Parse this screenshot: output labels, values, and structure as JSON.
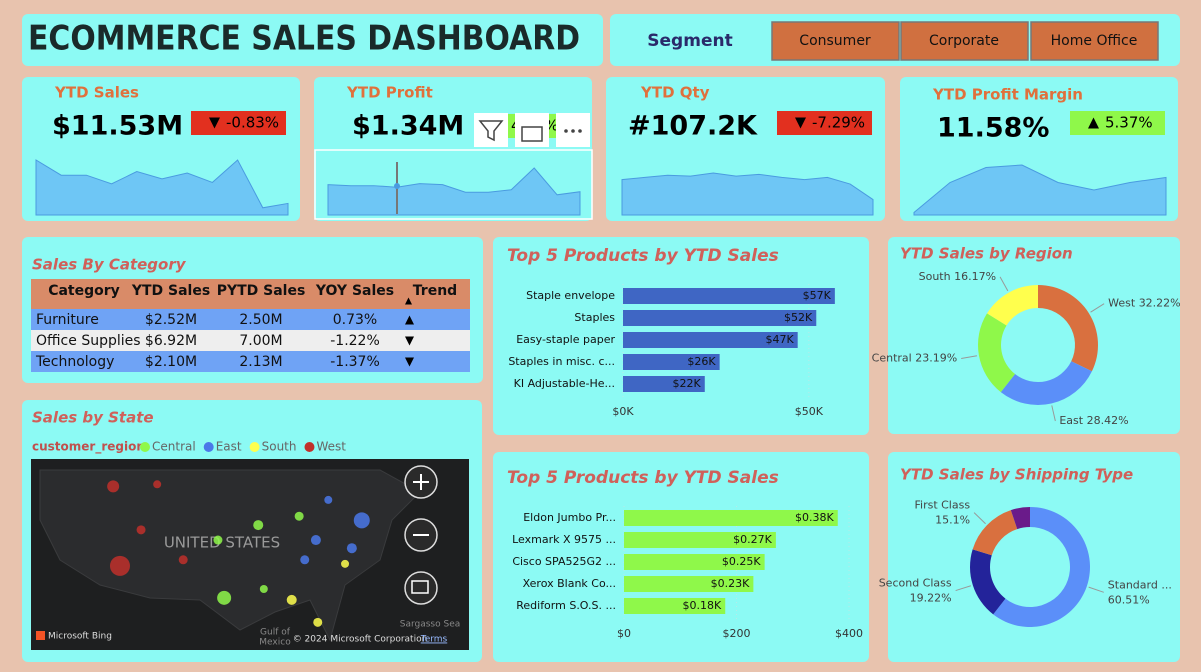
{
  "header": {
    "title": "ECOMMERCE SALES DASHBOARD"
  },
  "slicer": {
    "label": "Segment",
    "options": [
      "Consumer",
      "Corporate",
      "Home Office"
    ]
  },
  "kpis": [
    {
      "title": "YTD Sales",
      "value": "$11.53M",
      "change": "-0.83%",
      "direction": "down",
      "badge_color": "#e2301f"
    },
    {
      "title": "YTD Profit",
      "value": "$1.34M",
      "change": "4.50%",
      "direction": "up",
      "badge_color": "#8ff84a"
    },
    {
      "title": "YTD Qty",
      "value": "#107.2K",
      "change": "-7.29%",
      "direction": "down",
      "badge_color": "#e2301f"
    },
    {
      "title": "YTD Profit Margin",
      "value": "11.58%",
      "change": "5.37%",
      "direction": "up",
      "badge_color": "#8ff84a"
    }
  ],
  "table": {
    "title": "Sales By Category",
    "columns": [
      "Category",
      "YTD Sales",
      "PYTD Sales",
      "YOY Sales",
      "Trend"
    ],
    "rows": [
      [
        "Furniture",
        "$2.52M",
        "2.50M",
        "0.73%"
      ],
      [
        "Office Supplies",
        "$6.92M",
        "7.00M",
        "-1.22%"
      ],
      [
        "Technology",
        "$2.10M",
        "2.13M",
        "-1.37%"
      ]
    ],
    "trends": [
      "up",
      "down",
      "down"
    ]
  },
  "chart_data": [
    {
      "type": "area",
      "color": "#6ec6f5",
      "values": [
        0.76,
        0.55,
        0.55,
        0.43,
        0.6,
        0.5,
        0.58,
        0.45,
        0.76,
        0.1,
        0.16
      ]
    },
    {
      "type": "area",
      "color": "#6ec6f5",
      "values": [
        0.6,
        0.58,
        0.58,
        0.55,
        0.62,
        0.6,
        0.45,
        0.45,
        0.5,
        0.93,
        0.4,
        0.46
      ]
    },
    {
      "type": "area",
      "color": "#6ec6f5",
      "values": [
        0.8,
        0.85,
        0.9,
        0.88,
        0.95,
        0.88,
        0.92,
        0.85,
        0.8,
        0.85,
        0.7,
        0.35
      ]
    },
    {
      "type": "area",
      "color": "#6ec6f5",
      "values": [
        0.05,
        0.65,
        0.95,
        1,
        0.65,
        0.5,
        0.65,
        0.75
      ]
    },
    {
      "type": "bar",
      "orientation": "horizontal",
      "title": "Top 5 Products by YTD Sales",
      "categories": [
        "Staple envelope",
        "Staples",
        "Easy-staple paper",
        "Staples in misc. c...",
        "KI Adjustable-He..."
      ],
      "values": [
        57000,
        52000,
        47000,
        26000,
        22000
      ],
      "value_labels": [
        "$57K",
        "$52K",
        "$47K",
        "$26K",
        "$22K"
      ],
      "color": "#3f66c4",
      "xlim": [
        0,
        60000
      ],
      "xticks": [
        {
          "value": 0,
          "label": "$0K"
        },
        {
          "value": 50000,
          "label": "$50K"
        }
      ]
    },
    {
      "type": "bar",
      "orientation": "horizontal",
      "title": "Top 5 Products by YTD Sales",
      "categories": [
        "Eldon Jumbo Pr...",
        "Lexmark X 9575 ...",
        "Cisco SPA525G2 ...",
        "Xerox Blank Co...",
        "Rediform S.O.S. ..."
      ],
      "values": [
        380,
        270,
        250,
        230,
        180
      ],
      "value_labels": [
        "$0.38K",
        "$0.27K",
        "$0.25K",
        "$0.23K",
        "$0.18K"
      ],
      "color": "#8ff84a",
      "xlim": [
        0,
        400
      ],
      "xticks": [
        {
          "value": 0,
          "label": "$0"
        },
        {
          "value": 200,
          "label": "$200"
        },
        {
          "value": 400,
          "label": "$400"
        }
      ]
    },
    {
      "type": "donut",
      "title": "YTD Sales by Region",
      "categories": [
        "West",
        "East",
        "Central",
        "South"
      ],
      "values": [
        32.22,
        28.42,
        23.19,
        16.17
      ],
      "value_labels": [
        "32.22%",
        "28.42%",
        "23.19%",
        "16.17%"
      ],
      "colors": [
        "#d9703f",
        "#5b8ff9",
        "#8ff84a",
        "#ffff4d"
      ]
    },
    {
      "type": "donut",
      "title": "YTD Sales by Shipping Type",
      "categories": [
        "Standard ...",
        "Second Class",
        "First Class",
        null
      ],
      "values": [
        60.51,
        19.22,
        15.1,
        5.17
      ],
      "value_labels": [
        "60.51%",
        "19.22%",
        "15.1%",
        null
      ],
      "colors": [
        "#5b8ff9",
        "#23239a",
        "#d9703f",
        "#6a1b8a"
      ]
    },
    {
      "type": "map",
      "title": "Sales by State",
      "legend_title": "customer_region",
      "series": [
        {
          "name": "Central",
          "color": "#8ff84a"
        },
        {
          "name": "East",
          "color": "#4a78e8"
        },
        {
          "name": "South",
          "color": "#ffff4d"
        },
        {
          "name": "West",
          "color": "#c0302a"
        }
      ],
      "points": [
        {
          "lon": -113.2,
          "lat": 47.6,
          "size": 12,
          "series": 3
        },
        {
          "lon": -112.1,
          "lat": 35.9,
          "size": 20,
          "series": 3
        },
        {
          "lon": -108.7,
          "lat": 41.2,
          "size": 9,
          "series": 3
        },
        {
          "lon": -101.9,
          "lat": 36.8,
          "size": 9,
          "series": 3
        },
        {
          "lon": -106.1,
          "lat": 47.9,
          "size": 8,
          "series": 3
        },
        {
          "lon": -96.3,
          "lat": 39.7,
          "size": 9,
          "series": 0
        },
        {
          "lon": -89.8,
          "lat": 41.9,
          "size": 10,
          "series": 0
        },
        {
          "lon": -83.2,
          "lat": 43.2,
          "size": 9,
          "series": 0
        },
        {
          "lon": -95.3,
          "lat": 31.2,
          "size": 14,
          "series": 0
        },
        {
          "lon": -88.9,
          "lat": 32.5,
          "size": 8,
          "series": 0
        },
        {
          "lon": -80.5,
          "lat": 39.7,
          "size": 10,
          "series": 1
        },
        {
          "lon": -73.1,
          "lat": 42.6,
          "size": 16,
          "series": 1
        },
        {
          "lon": -74.7,
          "lat": 38.5,
          "size": 10,
          "series": 1
        },
        {
          "lon": -78.5,
          "lat": 45.6,
          "size": 8,
          "series": 1
        },
        {
          "lon": -82.3,
          "lat": 36.8,
          "size": 9,
          "series": 1
        },
        {
          "lon": -84.4,
          "lat": 30.9,
          "size": 10,
          "series": 2
        },
        {
          "lon": -80.2,
          "lat": 27.6,
          "size": 9,
          "series": 2
        },
        {
          "lon": -75.8,
          "lat": 36.2,
          "size": 8,
          "series": 2
        }
      ],
      "labels": {
        "country": "UNITED STATES",
        "sea": "Sargasso Sea",
        "gulf1": "Gulf of",
        "gulf2": "Mexico",
        "provider": "Microsoft Bing",
        "copyright": "© 2024 Microsoft Corporation",
        "terms": "Terms"
      }
    }
  ]
}
